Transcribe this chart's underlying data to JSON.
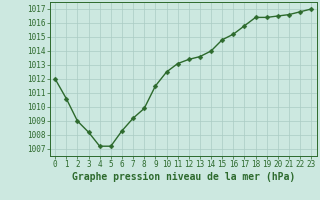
{
  "x": [
    0,
    1,
    2,
    3,
    4,
    5,
    6,
    7,
    8,
    9,
    10,
    11,
    12,
    13,
    14,
    15,
    16,
    17,
    18,
    19,
    20,
    21,
    22,
    23
  ],
  "y": [
    1012.0,
    1010.6,
    1009.0,
    1008.2,
    1007.2,
    1007.2,
    1008.3,
    1009.2,
    1009.9,
    1011.5,
    1012.5,
    1013.1,
    1013.4,
    1013.6,
    1014.0,
    1014.8,
    1015.2,
    1015.8,
    1016.4,
    1016.4,
    1016.5,
    1016.6,
    1016.8,
    1017.0
  ],
  "line_color": "#2d6a2d",
  "marker": "D",
  "marker_size": 2.5,
  "line_width": 1.0,
  "bg_color": "#cce8e0",
  "grid_color": "#aaccc4",
  "xlabel": "Graphe pression niveau de la mer (hPa)",
  "xlabel_color": "#2d6a2d",
  "xlabel_fontsize": 7.0,
  "tick_color": "#2d6a2d",
  "tick_fontsize": 5.5,
  "ytick_labels": [
    1007,
    1008,
    1009,
    1010,
    1011,
    1012,
    1013,
    1014,
    1015,
    1016,
    1017
  ],
  "ylim": [
    1006.5,
    1017.5
  ],
  "xlim": [
    -0.5,
    23.5
  ]
}
